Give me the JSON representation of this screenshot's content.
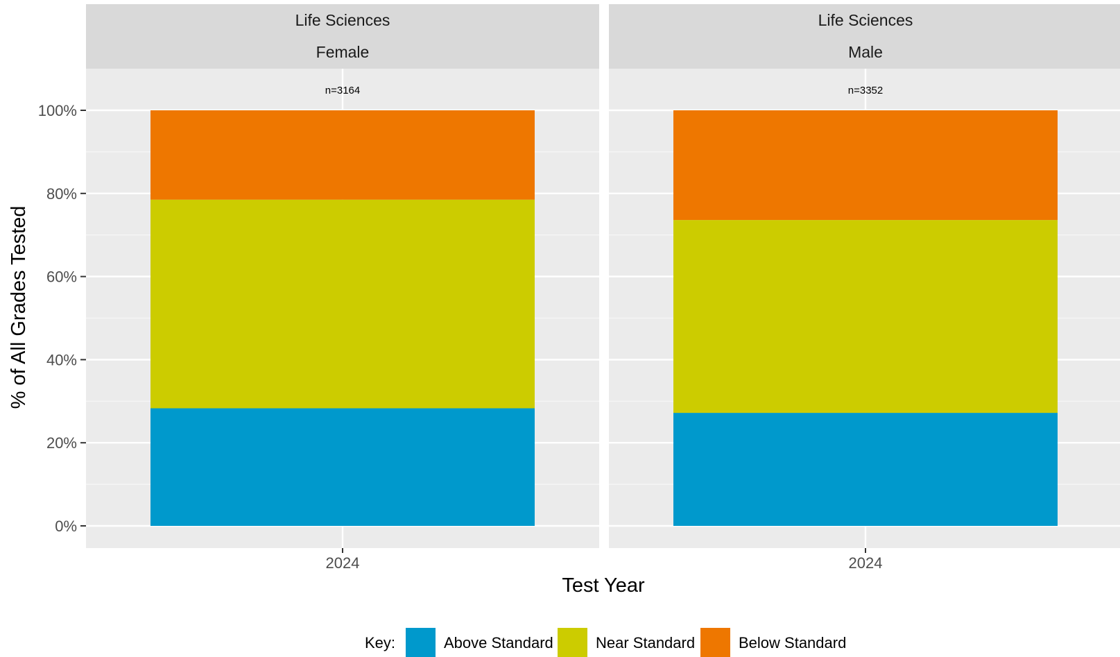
{
  "chart_data": {
    "type": "bar",
    "stacked": true,
    "xlabel": "Test Year",
    "ylabel": "% of All Grades Tested",
    "ylim": [
      0,
      100
    ],
    "y_ticks": [
      "0%",
      "20%",
      "40%",
      "60%",
      "80%",
      "100%"
    ],
    "grid": true,
    "legend_position": "bottom",
    "legend_title": "Key:",
    "series": [
      {
        "name": "Above Standard",
        "color": "#0099cc"
      },
      {
        "name": "Near Standard",
        "color": "#cccc00"
      },
      {
        "name": "Below Standard",
        "color": "#ee7700"
      }
    ],
    "facets": [
      {
        "strip_top": "Life Sciences",
        "strip_bottom": "Female",
        "category": "2024",
        "n_label": "n=3164",
        "values": [
          28.3,
          50.2,
          21.5
        ]
      },
      {
        "strip_top": "Life Sciences",
        "strip_bottom": "Male",
        "category": "2024",
        "n_label": "n=3352",
        "values": [
          27.2,
          46.4,
          26.4
        ]
      }
    ]
  }
}
